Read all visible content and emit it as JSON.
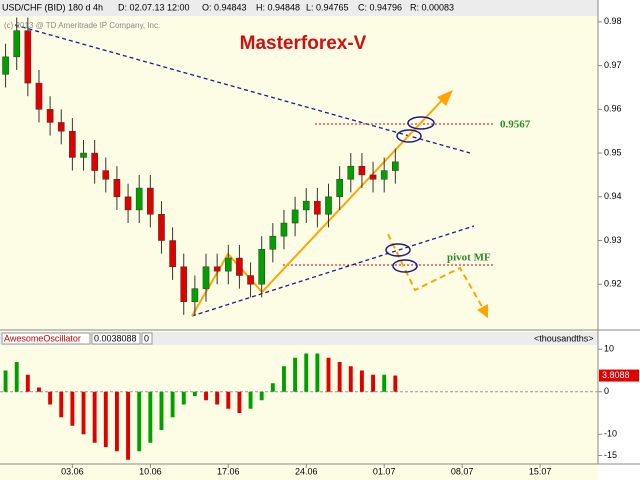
{
  "chart_data": [
    {
      "type": "candlestick",
      "header": [
        "USD/CHF (BID) 180 d 4h",
        "D: 02.07.13 12:00",
        "O: 0.94843",
        "H: 0.94848",
        "L: 0.94765",
        "C: 0.94796",
        "R: 0.00083"
      ],
      "copyright": "(c) 2013 @ TD Ameritrade IP Company, Inc.",
      "title": "Masterforex-V",
      "annotations": [
        "0.9567",
        "pivot MF"
      ],
      "x": [
        1,
        2,
        3,
        4,
        5,
        6,
        7,
        8,
        9,
        10,
        11,
        12,
        13,
        14,
        15,
        16,
        17,
        18,
        19,
        20,
        21,
        22,
        23,
        24,
        25,
        26,
        27,
        28,
        29,
        30,
        31,
        32,
        33,
        34,
        35,
        36
      ],
      "open": [
        0.968,
        0.972,
        0.978,
        0.966,
        0.96,
        0.957,
        0.955,
        0.949,
        0.95,
        0.946,
        0.944,
        0.94,
        0.937,
        0.942,
        0.936,
        0.93,
        0.924,
        0.916,
        0.919,
        0.924,
        0.923,
        0.926,
        0.922,
        0.92,
        0.928,
        0.931,
        0.934,
        0.937,
        0.939,
        0.936,
        0.94,
        0.944,
        0.947,
        0.945,
        0.944,
        0.946
      ],
      "high": [
        0.975,
        0.981,
        0.981,
        0.969,
        0.963,
        0.96,
        0.958,
        0.953,
        0.953,
        0.949,
        0.947,
        0.943,
        0.945,
        0.945,
        0.939,
        0.933,
        0.927,
        0.922,
        0.927,
        0.927,
        0.929,
        0.929,
        0.925,
        0.931,
        0.934,
        0.937,
        0.94,
        0.942,
        0.942,
        0.943,
        0.947,
        0.95,
        0.95,
        0.948,
        0.949,
        0.951
      ],
      "low": [
        0.965,
        0.969,
        0.963,
        0.957,
        0.954,
        0.952,
        0.946,
        0.946,
        0.943,
        0.941,
        0.937,
        0.934,
        0.934,
        0.933,
        0.927,
        0.921,
        0.913,
        0.913,
        0.916,
        0.92,
        0.92,
        0.919,
        0.917,
        0.917,
        0.925,
        0.928,
        0.931,
        0.934,
        0.933,
        0.933,
        0.937,
        0.941,
        0.942,
        0.941,
        0.941,
        0.943
      ],
      "close": [
        0.972,
        0.978,
        0.966,
        0.96,
        0.957,
        0.955,
        0.949,
        0.95,
        0.946,
        0.944,
        0.94,
        0.937,
        0.942,
        0.936,
        0.93,
        0.924,
        0.916,
        0.919,
        0.924,
        0.923,
        0.926,
        0.922,
        0.92,
        0.928,
        0.931,
        0.934,
        0.937,
        0.939,
        0.936,
        0.94,
        0.944,
        0.947,
        0.945,
        0.944,
        0.946,
        0.948
      ],
      "up_color": "#00a000",
      "down_color": "#e00000",
      "xlim": [
        0.5,
        54.2
      ],
      "ylim": [
        0.91,
        0.985
      ],
      "yticks": [
        0.98,
        0.97,
        0.96,
        0.95,
        0.94,
        0.93,
        0.92
      ]
    },
    {
      "type": "bar",
      "header": [
        "AwesomeOscillator",
        "0.0038088",
        "0",
        "<thousandths>"
      ],
      "x": [
        1,
        2,
        3,
        4,
        5,
        6,
        7,
        8,
        9,
        10,
        11,
        12,
        13,
        14,
        15,
        16,
        17,
        18,
        19,
        20,
        21,
        22,
        23,
        24,
        25,
        26,
        27,
        28,
        29,
        30,
        31,
        32,
        33,
        34,
        35,
        36
      ],
      "values": [
        5,
        7,
        4,
        1,
        -3,
        -6,
        -8,
        -10,
        -12,
        -13,
        -14,
        -16,
        -14,
        -12,
        -9,
        -6,
        -3,
        -1,
        -2,
        -3,
        -4,
        -5,
        -4,
        -2,
        2,
        6,
        8,
        9,
        9,
        8,
        7,
        6,
        5,
        4,
        4,
        3.8088
      ],
      "last_value_label": "3.8088",
      "up_color": "#00a000",
      "down_color": "#e00000",
      "xlim": [
        0.5,
        54.2
      ],
      "ylim": [
        -17,
        11
      ],
      "yticks": [
        10,
        0,
        -10,
        -15
      ],
      "xticks": [
        {
          "value": 7,
          "label": "03.06"
        },
        {
          "value": 14,
          "label": "10.06"
        },
        {
          "value": 21,
          "label": "17.06"
        },
        {
          "value": 28,
          "label": "24.06"
        },
        {
          "value": 35,
          "label": "01.07"
        },
        {
          "value": 42,
          "label": "08.07"
        },
        {
          "value": 49,
          "label": "15.07"
        }
      ]
    }
  ]
}
